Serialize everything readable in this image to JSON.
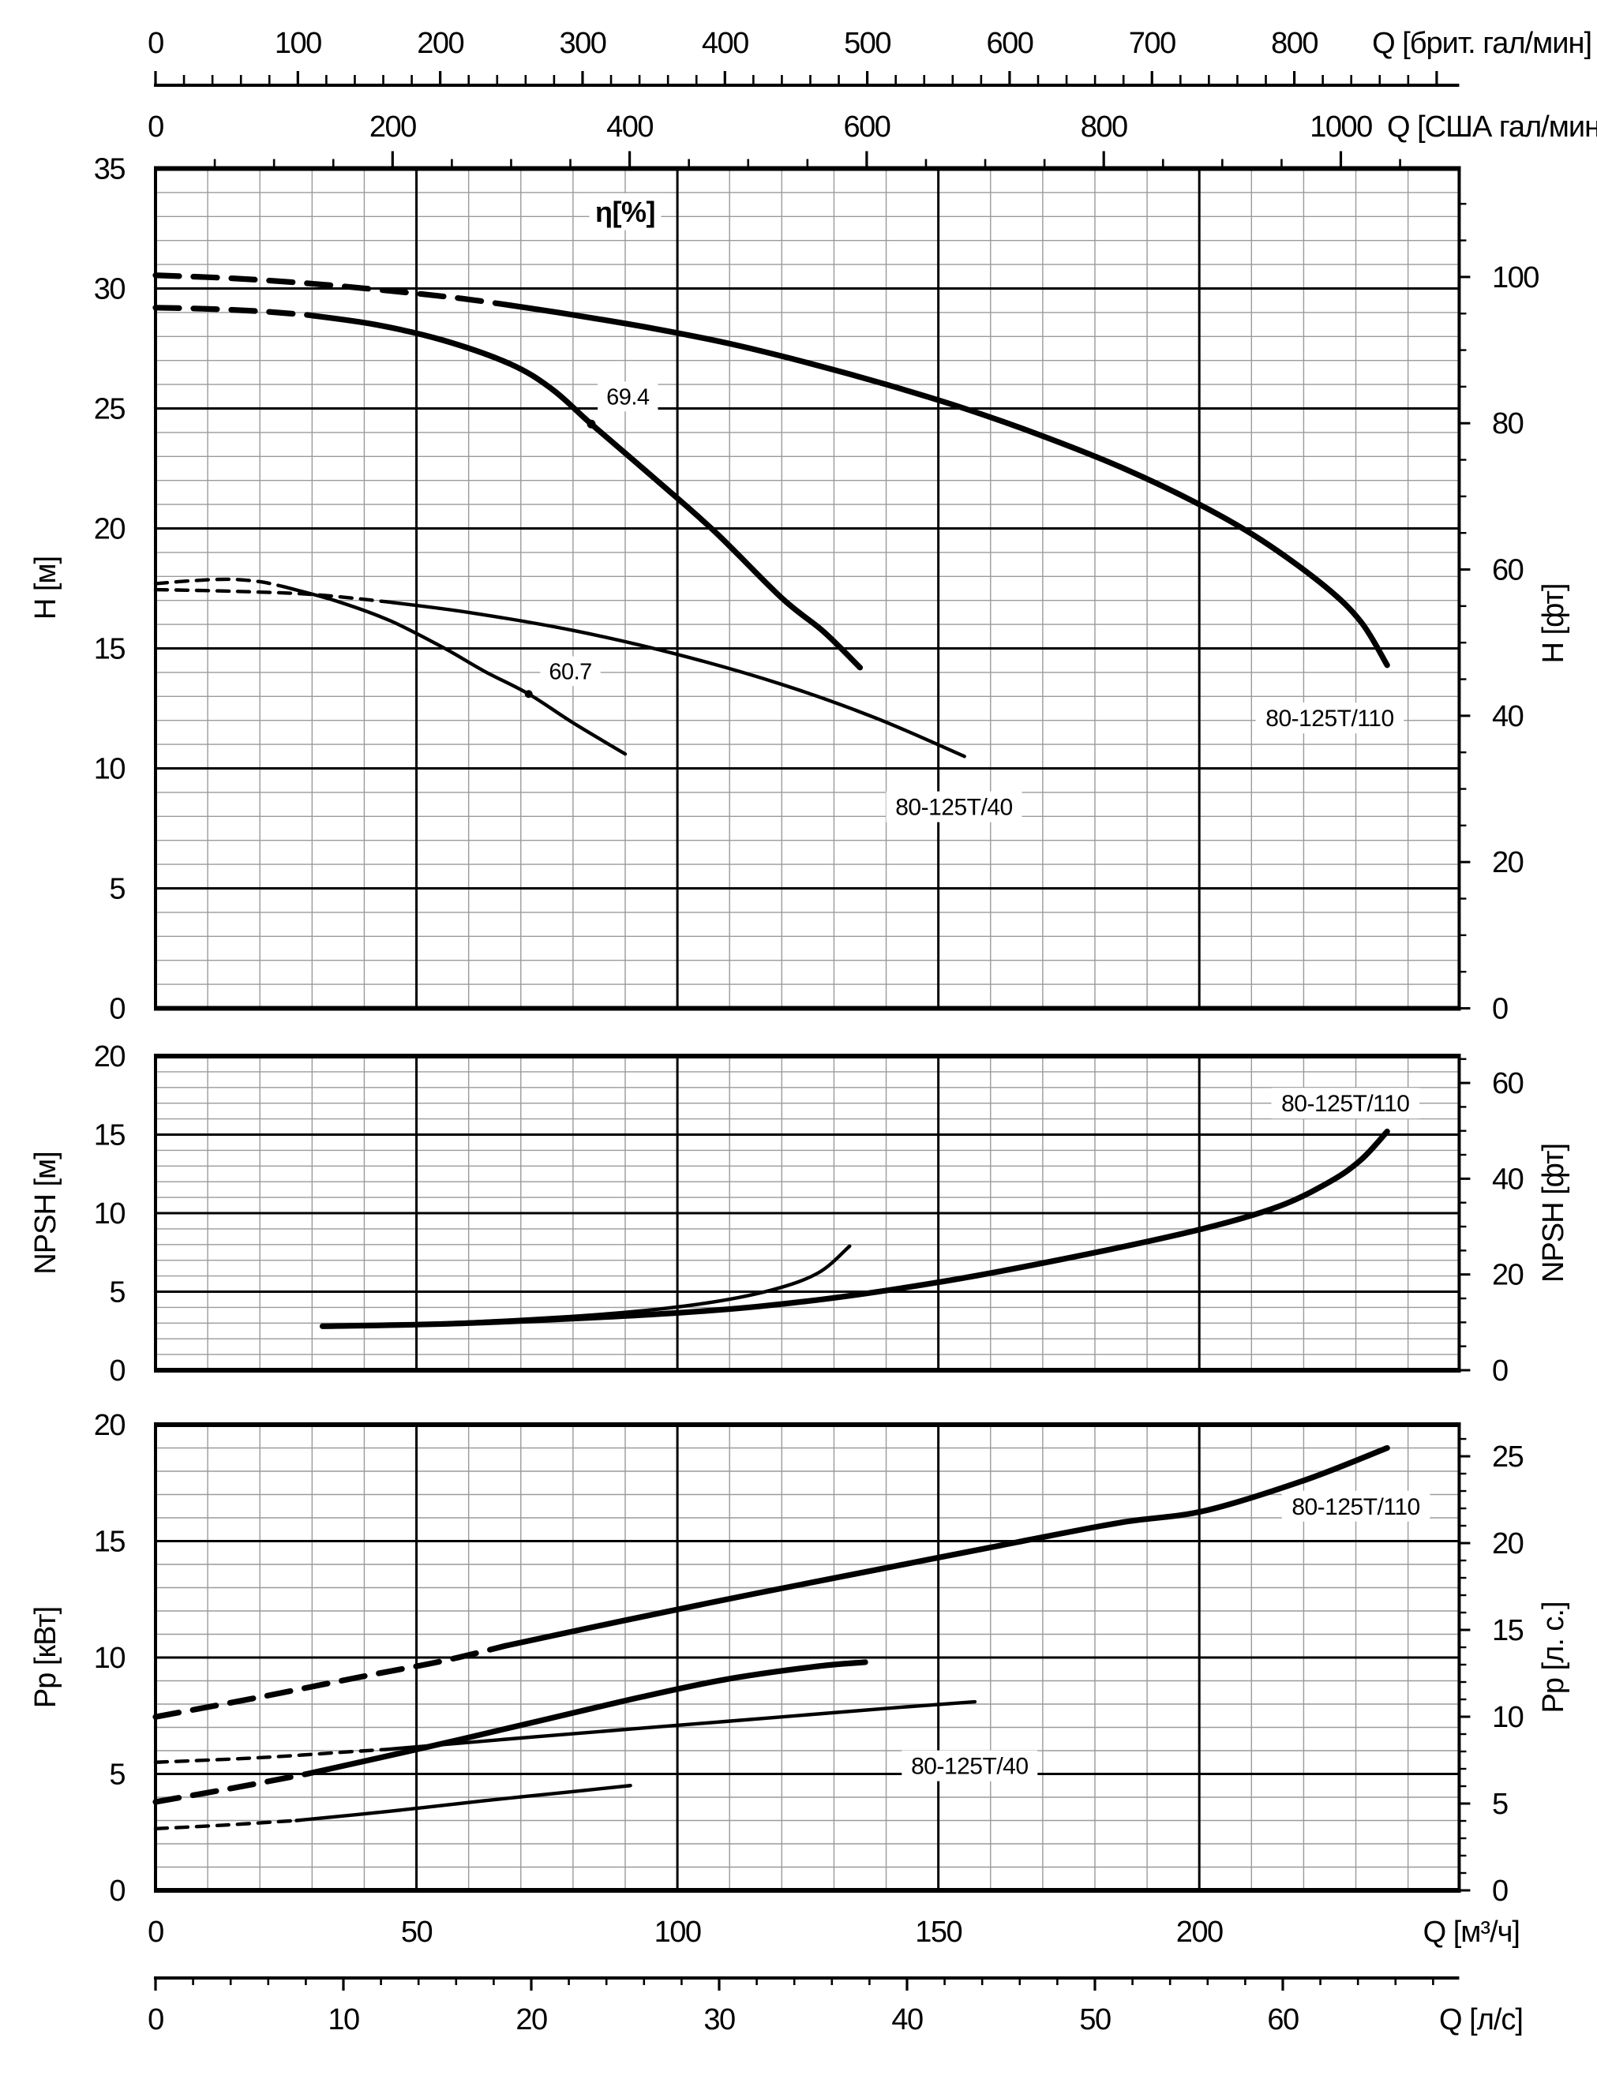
{
  "page": {
    "background": "#ffffff",
    "ink": "#000000",
    "grid_minor_color": "#9a9a9a",
    "grid_major_color": "#000000"
  },
  "chart_data": {
    "type": "line",
    "q_axis": {
      "unit": "м³/ч",
      "max": 249.8,
      "grid_minor_step": 10,
      "grid_major_step": 50
    },
    "top_axes": [
      {
        "name": "imperial-gpm",
        "unit_label": "Q [брит. гал/мин]",
        "m3h_per_unit": 0.27276,
        "labels": [
          0,
          100,
          200,
          300,
          400,
          500,
          600,
          700,
          800
        ],
        "tick_minor_step": 20,
        "tick_major_step": 100,
        "tick_max": 900
      },
      {
        "name": "us-gpm",
        "unit_label": "Q [США гал/мин]",
        "m3h_per_unit": 0.22712,
        "labels": [
          0,
          200,
          400,
          600,
          800,
          1000
        ],
        "tick_minor_step": 50,
        "tick_major_step": 200,
        "tick_max": 1050
      }
    ],
    "bottom_axes": [
      {
        "name": "m3h",
        "unit_label": "Q [м³/ч]",
        "m3h_per_unit": 1,
        "labels": [
          0,
          50,
          100,
          150,
          200
        ]
      },
      {
        "name": "liters-per-second",
        "unit_label": "Q [л/с]",
        "m3h_per_unit": 3.6,
        "labels": [
          0,
          10,
          20,
          30,
          40,
          50,
          60
        ],
        "tick_minor_step": 2,
        "tick_major_step": 10,
        "tick_max": 68
      }
    ],
    "charts": [
      {
        "name": "head",
        "ylabel_left": "H [м]",
        "ylabel_right": "H [фт]",
        "ylim": [
          0,
          35
        ],
        "grid_minor_step": 1,
        "grid_major_step": 5,
        "left_labels": [
          35,
          30,
          25,
          20,
          15,
          10,
          5,
          0
        ],
        "right_axis": {
          "left_per_unit": 0.3048,
          "labels": [
            100,
            80,
            60,
            40,
            20,
            0
          ],
          "tick_minor_step": 5,
          "tick_major_step": 20,
          "tick_max": 110
        },
        "series": [
          {
            "label": "80-125T/110",
            "variant": "full",
            "weight": "thick",
            "dash_until": 68,
            "points": [
              [
                0,
                30.55
              ],
              [
                15,
                30.42
              ],
              [
                30,
                30.2
              ],
              [
                45,
                29.9
              ],
              [
                58,
                29.6
              ],
              [
                68,
                29.3
              ],
              [
                80,
                28.9
              ],
              [
                95,
                28.35
              ],
              [
                110,
                27.7
              ],
              [
                125,
                26.9
              ],
              [
                140,
                26.0
              ],
              [
                155,
                25.0
              ],
              [
                170,
                23.85
              ],
              [
                185,
                22.55
              ],
              [
                200,
                21.0
              ],
              [
                212,
                19.5
              ],
              [
                224,
                17.6
              ],
              [
                231,
                16.1
              ],
              [
                236,
                14.3
              ]
            ]
          },
          {
            "label": "80-125T/110",
            "variant": "trim",
            "weight": "thick",
            "dash_until": 29,
            "points": [
              [
                0,
                29.2
              ],
              [
                10,
                29.15
              ],
              [
                20,
                29.05
              ],
              [
                29,
                28.9
              ],
              [
                42,
                28.5
              ],
              [
                55,
                27.85
              ],
              [
                68,
                26.85
              ],
              [
                76,
                25.8
              ],
              [
                83.5,
                24.35
              ],
              [
                95,
                22.2
              ],
              [
                107,
                19.9
              ],
              [
                120,
                17.1
              ],
              [
                128,
                15.7
              ],
              [
                135,
                14.2
              ]
            ],
            "bep": {
              "q": 83.5,
              "value": 24.35,
              "label": "69.4",
              "label_q": 90.5,
              "label_value": 25.5
            }
          },
          {
            "label": "80-125T/40",
            "variant": "full",
            "weight": "thin",
            "dash_until": 44,
            "points": [
              [
                0,
                17.45
              ],
              [
                15,
                17.38
              ],
              [
                30,
                17.25
              ],
              [
                44,
                16.95
              ],
              [
                60,
                16.5
              ],
              [
                80,
                15.75
              ],
              [
                100,
                14.75
              ],
              [
                120,
                13.5
              ],
              [
                138,
                12.1
              ],
              [
                155,
                10.5
              ]
            ]
          },
          {
            "label": "80-125T/40",
            "variant": "trim",
            "weight": "thin",
            "dash_until": 25,
            "points": [
              [
                0,
                17.7
              ],
              [
                7,
                17.82
              ],
              [
                14,
                17.88
              ],
              [
                20,
                17.78
              ],
              [
                25,
                17.55
              ],
              [
                35,
                16.95
              ],
              [
                45,
                16.15
              ],
              [
                55,
                15.05
              ],
              [
                63,
                14.05
              ],
              [
                71.5,
                13.1
              ],
              [
                80,
                11.9
              ],
              [
                90,
                10.6
              ]
            ],
            "bep": {
              "q": 71.5,
              "value": 13.1,
              "label": "60.7",
              "label_q": 79.5,
              "label_value": 14.05
            }
          }
        ],
        "annotations": [
          {
            "text": "η[%]",
            "q": 90,
            "value": 33.2,
            "style": "eta"
          },
          {
            "text": "80-125T/110",
            "q": 225,
            "value": 12.1,
            "style": "curve"
          },
          {
            "text": "80-125T/40",
            "q": 153,
            "value": 8.4,
            "style": "curve"
          }
        ]
      },
      {
        "name": "npsh",
        "ylabel_left": "NPSH [м]",
        "ylabel_right": "NPSH [фт]",
        "ylim": [
          0,
          20
        ],
        "grid_minor_step": 1,
        "grid_major_step": 5,
        "left_labels": [
          20,
          15,
          10,
          5,
          0
        ],
        "right_axis": {
          "left_per_unit": 0.3048,
          "labels": [
            60,
            40,
            20,
            0
          ],
          "tick_minor_step": 5,
          "tick_major_step": 20,
          "tick_max": 65
        },
        "series": [
          {
            "label": "80-125T/110",
            "variant": "full",
            "weight": "thick",
            "dash_until": null,
            "points": [
              [
                32,
                2.8
              ],
              [
                60,
                3.0
              ],
              [
                100,
                3.65
              ],
              [
                125,
                4.4
              ],
              [
                150,
                5.6
              ],
              [
                175,
                7.15
              ],
              [
                200,
                8.95
              ],
              [
                215,
                10.4
              ],
              [
                225,
                12.0
              ],
              [
                231,
                13.4
              ],
              [
                236,
                15.2
              ]
            ]
          },
          {
            "label": "80-125T/40",
            "variant": "full",
            "weight": "thin",
            "dash_until": null,
            "points": [
              [
                40,
                2.85
              ],
              [
                62,
                3.1
              ],
              [
                87,
                3.6
              ],
              [
                105,
                4.25
              ],
              [
                118,
                5.1
              ],
              [
                127,
                6.2
              ],
              [
                133,
                7.9
              ]
            ]
          }
        ],
        "annotations": [
          {
            "text": "80-125T/110",
            "q": 228,
            "value": 17.0,
            "style": "curve"
          }
        ]
      },
      {
        "name": "power",
        "ylabel_left": "Pp [кВт]",
        "ylabel_right": "Pp [л. с.]",
        "ylim": [
          0,
          20
        ],
        "grid_minor_step": 1,
        "grid_major_step": 5,
        "left_labels": [
          20,
          15,
          10,
          5,
          0
        ],
        "right_axis": {
          "left_per_unit": 0.7457,
          "labels": [
            25,
            20,
            15,
            10,
            5,
            0
          ],
          "tick_minor_step": 1,
          "tick_major_step": 5,
          "tick_max": 26
        },
        "series": [
          {
            "label": "80-125T/110",
            "variant": "full",
            "weight": "thick",
            "dash_until": 67,
            "points": [
              [
                0,
                7.45
              ],
              [
                20,
                8.3
              ],
              [
                40,
                9.2
              ],
              [
                55,
                9.85
              ],
              [
                67,
                10.5
              ],
              [
                90,
                11.6
              ],
              [
                115,
                12.75
              ],
              [
                140,
                13.85
              ],
              [
                165,
                14.95
              ],
              [
                185,
                15.8
              ],
              [
                201,
                16.3
              ],
              [
                220,
                17.6
              ],
              [
                236,
                19.0
              ]
            ]
          },
          {
            "label": "80-125T/110",
            "variant": "trim",
            "weight": "thick",
            "dash_until": 29,
            "points": [
              [
                0,
                3.8
              ],
              [
                15,
                4.4
              ],
              [
                29,
                5.0
              ],
              [
                51,
                6.1
              ],
              [
                73,
                7.25
              ],
              [
                93,
                8.3
              ],
              [
                109,
                9.05
              ],
              [
                126,
                9.6
              ],
              [
                136,
                9.8
              ]
            ]
          },
          {
            "label": "80-125T/40",
            "variant": "full",
            "weight": "thin",
            "dash_until": 44,
            "points": [
              [
                0,
                5.5
              ],
              [
                20,
                5.7
              ],
              [
                37,
                5.95
              ],
              [
                44,
                6.05
              ],
              [
                73,
                6.6
              ],
              [
                109,
                7.25
              ],
              [
                142,
                7.85
              ],
              [
                157,
                8.1
              ]
            ]
          },
          {
            "label": "80-125T/40",
            "variant": "trim",
            "weight": "thin",
            "dash_until": 27,
            "points": [
              [
                0,
                2.65
              ],
              [
                13,
                2.8
              ],
              [
                27,
                3.0
              ],
              [
                45,
                3.4
              ],
              [
                63,
                3.85
              ],
              [
                76,
                4.15
              ],
              [
                91,
                4.5
              ]
            ]
          }
        ],
        "annotations": [
          {
            "text": "80-125T/110",
            "q": 230,
            "value": 16.5,
            "style": "curve"
          },
          {
            "text": "80-125T/40",
            "q": 156,
            "value": 5.35,
            "style": "curve"
          }
        ]
      }
    ]
  }
}
